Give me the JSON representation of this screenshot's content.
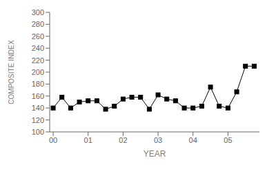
{
  "chart_data": {
    "type": "line",
    "x": [
      0.0,
      0.25,
      0.5,
      0.75,
      1.0,
      1.25,
      1.5,
      1.75,
      2.0,
      2.25,
      2.5,
      2.75,
      3.0,
      3.25,
      3.5,
      3.75,
      4.0,
      4.25,
      4.5,
      4.75,
      5.0,
      5.25,
      5.5,
      5.75
    ],
    "values": [
      140,
      158,
      140,
      150,
      152,
      152,
      138,
      143,
      155,
      158,
      158,
      138,
      162,
      155,
      152,
      140,
      140,
      143,
      175,
      143,
      140,
      167,
      210,
      210
    ],
    "xlabel": "YEAR",
    "ylabel": "COMPOSITE INDEX",
    "xlim": [
      -0.1,
      5.9
    ],
    "ylim": [
      100,
      300
    ],
    "xticks": [
      {
        "value": 0,
        "label": "00"
      },
      {
        "value": 1,
        "label": "01"
      },
      {
        "value": 2,
        "label": "02"
      },
      {
        "value": 3,
        "label": "03"
      },
      {
        "value": 4,
        "label": "04"
      },
      {
        "value": 5,
        "label": "05"
      }
    ],
    "yticks": [
      100,
      120,
      140,
      160,
      180,
      200,
      220,
      240,
      260,
      280,
      300
    ],
    "color": "#000000",
    "marker": "square",
    "grid": false
  }
}
